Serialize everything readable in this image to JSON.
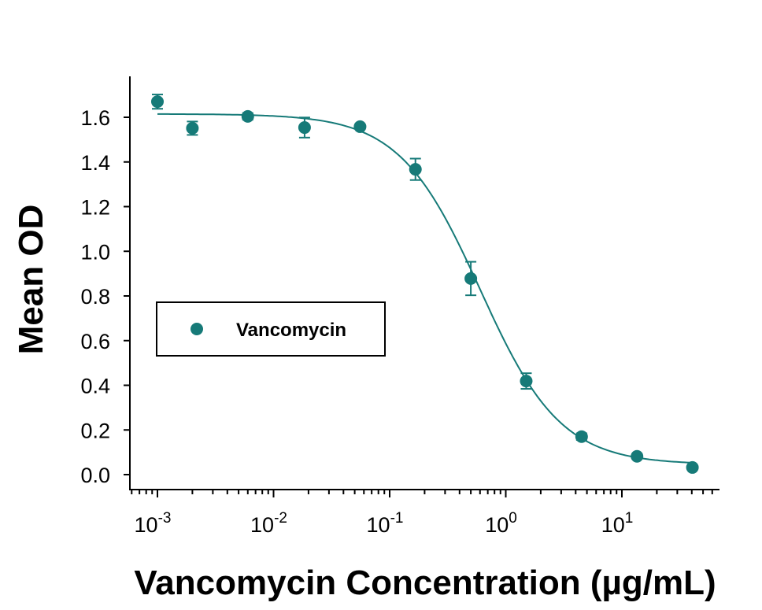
{
  "chart_data": {
    "type": "scatter",
    "title": "",
    "xlabel": "Vancomycin Concentration (µg/mL)",
    "ylabel": "Mean OD",
    "x_scale": "log",
    "xlim": [
      0.0006,
      80
    ],
    "ylim": [
      -0.06,
      1.76
    ],
    "x_ticks": [
      {
        "value": 0.001,
        "base": "10",
        "exp": "-3"
      },
      {
        "value": 0.01,
        "base": "10",
        "exp": "-2"
      },
      {
        "value": 0.1,
        "base": "10",
        "exp": "-1"
      },
      {
        "value": 1,
        "base": "10",
        "exp": "0"
      },
      {
        "value": 10,
        "base": "10",
        "exp": "1"
      }
    ],
    "y_ticks": [
      "0.0",
      "0.2",
      "0.4",
      "0.6",
      "0.8",
      "1.0",
      "1.2",
      "1.4",
      "1.6"
    ],
    "grid": false,
    "legend_position": "middle-left",
    "color": "#167a78",
    "series": [
      {
        "name": "Vancomycin",
        "x": [
          0.001,
          0.002,
          0.006,
          0.0185,
          0.0556,
          0.1667,
          0.5,
          1.5,
          4.5,
          13.5,
          40.5
        ],
        "y": [
          1.67,
          1.551,
          1.604,
          1.554,
          1.558,
          1.367,
          0.878,
          0.419,
          0.17,
          0.082,
          0.032
        ],
        "error": [
          0.032,
          0.03,
          0.015,
          0.045,
          0.01,
          0.048,
          0.075,
          0.035,
          0.015,
          0.008,
          0.006
        ],
        "fit": {
          "model": "4PL",
          "top": 1.615,
          "bottom": 0.045,
          "ec50": 0.6,
          "hill": 1.25
        }
      }
    ]
  }
}
